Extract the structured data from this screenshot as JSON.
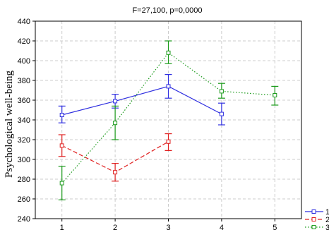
{
  "chart_data": {
    "type": "line",
    "title": "F=27,100, p=0,0000",
    "xlabel": "",
    "ylabel": "Psychological well-being",
    "xlim": [
      0.5,
      5.5
    ],
    "ylim": [
      240,
      440
    ],
    "x_ticks": [
      1,
      2,
      3,
      4,
      5
    ],
    "y_ticks": [
      240,
      260,
      280,
      300,
      320,
      340,
      360,
      380,
      400,
      420,
      440
    ],
    "grid": true,
    "legend_position": "bottom-right",
    "series": [
      {
        "name": "1",
        "color": "#2f2fe0",
        "line_style": "solid",
        "points": [
          {
            "x": 1,
            "y": 345,
            "low": 337,
            "high": 354
          },
          {
            "x": 2,
            "y": 359,
            "low": 352,
            "high": 366
          },
          {
            "x": 3,
            "y": 374,
            "low": 362,
            "high": 386
          },
          {
            "x": 4,
            "y": 346,
            "low": 335,
            "high": 357
          }
        ]
      },
      {
        "name": "2",
        "color": "#e02020",
        "line_style": "dashed",
        "points": [
          {
            "x": 1,
            "y": 314,
            "low": 303,
            "high": 325
          },
          {
            "x": 2,
            "y": 287,
            "low": 278,
            "high": 296
          },
          {
            "x": 3,
            "y": 318,
            "low": 309,
            "high": 326
          }
        ]
      },
      {
        "name": "3",
        "color": "#1a9a1a",
        "line_style": "dotted",
        "points": [
          {
            "x": 1,
            "y": 276,
            "low": 259,
            "high": 293
          },
          {
            "x": 2,
            "y": 337,
            "low": 320,
            "high": 354
          },
          {
            "x": 3,
            "y": 408,
            "low": 397,
            "high": 420
          },
          {
            "x": 4,
            "y": 369,
            "low": 362,
            "high": 377
          },
          {
            "x": 5,
            "y": 365,
            "low": 355,
            "high": 374
          }
        ]
      }
    ]
  }
}
